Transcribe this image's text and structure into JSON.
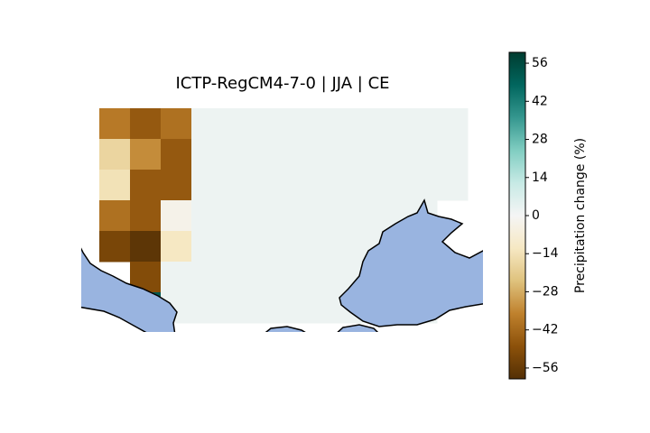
{
  "chart_data": {
    "type": "grid-map",
    "title": "ICTP-RegCM4-7-0 | JJA | CE",
    "colormap": "BrBG",
    "values": [
      [
        -38,
        -46,
        -40,
        2,
        2,
        2,
        2,
        2,
        2,
        2,
        2,
        2
      ],
      [
        -18,
        -34,
        -46,
        2,
        2,
        2,
        2,
        2,
        2,
        2,
        2,
        2
      ],
      [
        -14,
        -46,
        -46,
        2,
        2,
        2,
        2,
        2,
        2,
        2,
        2,
        2
      ],
      [
        -40,
        -46,
        -3,
        2,
        2,
        2,
        2,
        2,
        2,
        2,
        2,
        null
      ],
      [
        -52,
        -58,
        -12,
        2,
        2,
        2,
        2,
        2,
        2,
        2,
        2,
        null
      ],
      [
        null,
        -50,
        2,
        2,
        2,
        2,
        2,
        2,
        2,
        2,
        2,
        null
      ],
      [
        null,
        52,
        2,
        2,
        2,
        2,
        2,
        2,
        2,
        2,
        2,
        null
      ]
    ],
    "colorbar": {
      "label": "Precipitation change (%)",
      "lim": [
        -60,
        60
      ],
      "ticks": [
        56,
        42,
        28,
        14,
        0,
        {
          "value": -14,
          "label": "−14"
        },
        {
          "value": -28,
          "label": "−28"
        },
        {
          "value": -42,
          "label": "−42"
        },
        {
          "value": -56,
          "label": "−56"
        }
      ]
    }
  }
}
